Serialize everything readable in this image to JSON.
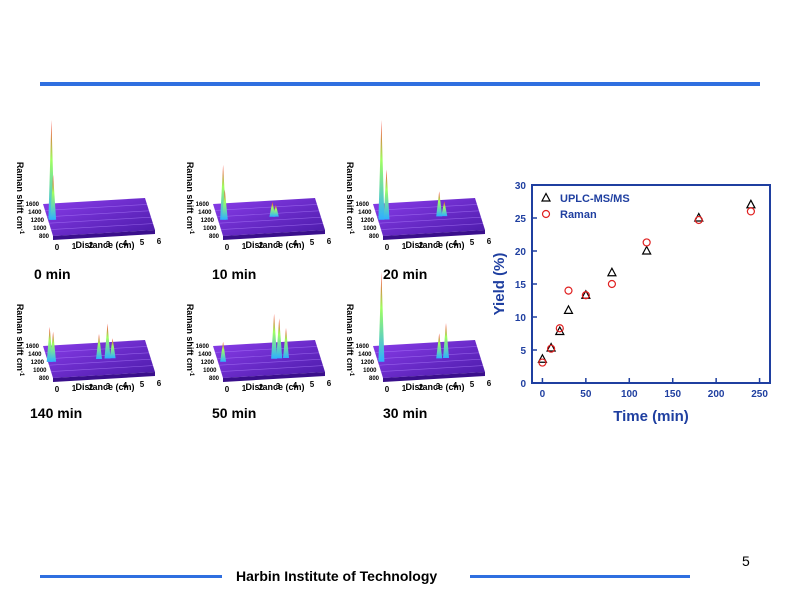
{
  "footer": {
    "institution": "Harbin Institute of Technology",
    "page_number": "5"
  },
  "panels": [
    {
      "time": "0 min",
      "xlabel": "Distance (cm)",
      "ylabel": "Raman shift  cm",
      "ylabel_exp": "-1",
      "xticks": [
        "0",
        "1",
        "2",
        "3",
        "4",
        "5",
        "6"
      ],
      "yticks": [
        "1600",
        "1400",
        "1200",
        "1000",
        "800"
      ],
      "peaks": [
        {
          "d": 0.2,
          "h": 1.0
        },
        {
          "d": 0.3,
          "h": 0.45
        }
      ]
    },
    {
      "time": "10 min",
      "xlabel": "Distance (cm)",
      "ylabel": "Raman shift  cm",
      "ylabel_exp": "-1",
      "xticks": [
        "0",
        "1",
        "2",
        "3",
        "4",
        "5",
        "6"
      ],
      "yticks": [
        "1600",
        "1400",
        "1200",
        "1000",
        "800"
      ],
      "peaks": [
        {
          "d": 0.3,
          "h": 0.55
        },
        {
          "d": 0.4,
          "h": 0.3
        },
        {
          "d": 3.2,
          "h": 0.15
        },
        {
          "d": 3.4,
          "h": 0.12
        }
      ]
    },
    {
      "time": "20 min",
      "xlabel": "Distance (cm)",
      "ylabel": "Raman shift  cm",
      "ylabel_exp": "-1",
      "xticks": [
        "0",
        "1",
        "2",
        "3",
        "4",
        "5",
        "6"
      ],
      "yticks": [
        "1600",
        "1400",
        "1200",
        "1000",
        "800"
      ],
      "peaks": [
        {
          "d": 0.2,
          "h": 1.0
        },
        {
          "d": 0.5,
          "h": 0.5
        },
        {
          "d": 3.6,
          "h": 0.25
        },
        {
          "d": 3.9,
          "h": 0.15
        }
      ]
    },
    {
      "time": "140 min",
      "xlabel": "Distance (cm)",
      "ylabel": "Raman shift  cm",
      "ylabel_exp": "-1",
      "xticks": [
        "0",
        "1",
        "2",
        "3",
        "4",
        "5",
        "6"
      ],
      "yticks": [
        "1600",
        "1400",
        "1200",
        "1000",
        "800"
      ],
      "peaks": [
        {
          "d": 0.1,
          "h": 0.35
        },
        {
          "d": 0.3,
          "h": 0.3
        },
        {
          "d": 3.0,
          "h": 0.25
        },
        {
          "d": 3.5,
          "h": 0.35
        },
        {
          "d": 3.8,
          "h": 0.2
        }
      ]
    },
    {
      "time": "50 min",
      "xlabel": "Distance (cm)",
      "ylabel": "Raman shift  cm",
      "ylabel_exp": "-1",
      "xticks": [
        "0",
        "1",
        "2",
        "3",
        "4",
        "5",
        "6"
      ],
      "yticks": [
        "1600",
        "1400",
        "1200",
        "1000",
        "800"
      ],
      "peaks": [
        {
          "d": 0.3,
          "h": 0.2
        },
        {
          "d": 3.3,
          "h": 0.45
        },
        {
          "d": 3.6,
          "h": 0.4
        },
        {
          "d": 4.0,
          "h": 0.3
        }
      ]
    },
    {
      "time": "30 min",
      "xlabel": "Distance (cm)",
      "ylabel": "Raman shift  cm",
      "ylabel_exp": "-1",
      "xticks": [
        "0",
        "1",
        "2",
        "3",
        "4",
        "5",
        "6"
      ],
      "yticks": [
        "1600",
        "1400",
        "1200",
        "1000",
        "800"
      ],
      "peaks": [
        {
          "d": 0.2,
          "h": 0.9
        },
        {
          "d": 3.6,
          "h": 0.25
        },
        {
          "d": 4.0,
          "h": 0.35
        }
      ]
    }
  ],
  "chart_data": {
    "type": "scatter",
    "xlabel": "Time (min)",
    "ylabel": "Yield (%)",
    "xlim": [
      -12,
      262
    ],
    "ylim": [
      0,
      30
    ],
    "xticks": [
      0,
      50,
      100,
      150,
      200,
      250
    ],
    "yticks": [
      0,
      5,
      10,
      15,
      20,
      25,
      30
    ],
    "grid": false,
    "legend_position": "top-left",
    "axis_color": "#1f3fa0",
    "series": [
      {
        "name": "UPLC-MS/MS",
        "marker": "triangle",
        "color": "#000000",
        "x": [
          0,
          10,
          20,
          30,
          50,
          80,
          120,
          180,
          240
        ],
        "y": [
          3.6,
          5.3,
          7.8,
          11.0,
          13.3,
          16.7,
          20.0,
          25.0,
          27.0
        ]
      },
      {
        "name": "Raman",
        "marker": "circle",
        "color": "#e02020",
        "x": [
          0,
          10,
          20,
          30,
          50,
          80,
          120,
          180,
          240
        ],
        "y": [
          3.1,
          5.2,
          8.3,
          14.0,
          13.3,
          15.0,
          21.3,
          24.7,
          26.0
        ]
      }
    ]
  }
}
